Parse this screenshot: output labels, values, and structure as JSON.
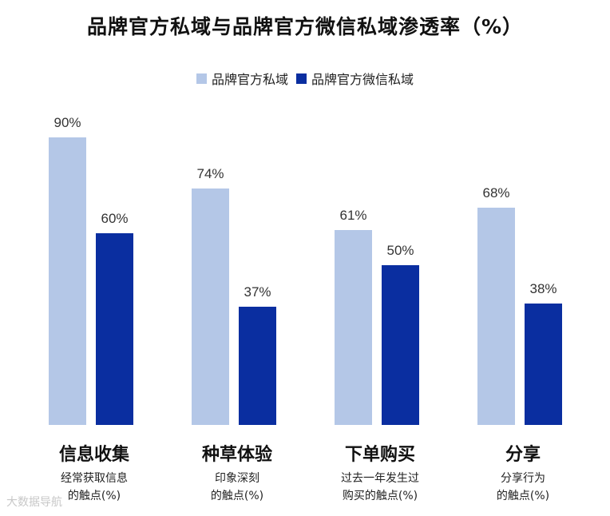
{
  "chart_data": {
    "type": "bar",
    "title": "品牌官方私域与品牌官方微信私域渗透率（%）",
    "categories": [
      "信息收集",
      "种草体验",
      "下单购买",
      "分享"
    ],
    "category_subtitles": [
      [
        "经常获取信息",
        "的触点(%)"
      ],
      [
        "印象深刻",
        "的触点(%)"
      ],
      [
        "过去一年发生过",
        "购买的触点(%)"
      ],
      [
        "分享行为",
        "的触点(%)"
      ]
    ],
    "series": [
      {
        "name": "品牌官方私域",
        "values": [
          90,
          74,
          61,
          68
        ],
        "labels": [
          "90%",
          "74%",
          "61%",
          "68%"
        ],
        "color": "#b4c7e7"
      },
      {
        "name": "品牌官方微信私域",
        "values": [
          60,
          37,
          50,
          38
        ],
        "labels": [
          "60%",
          "37%",
          "50%",
          "38%"
        ],
        "color": "#0a2ea0"
      }
    ],
    "ylim": [
      0,
      100
    ],
    "grid": false,
    "legend": "top-center"
  },
  "watermark": "大数据导航"
}
